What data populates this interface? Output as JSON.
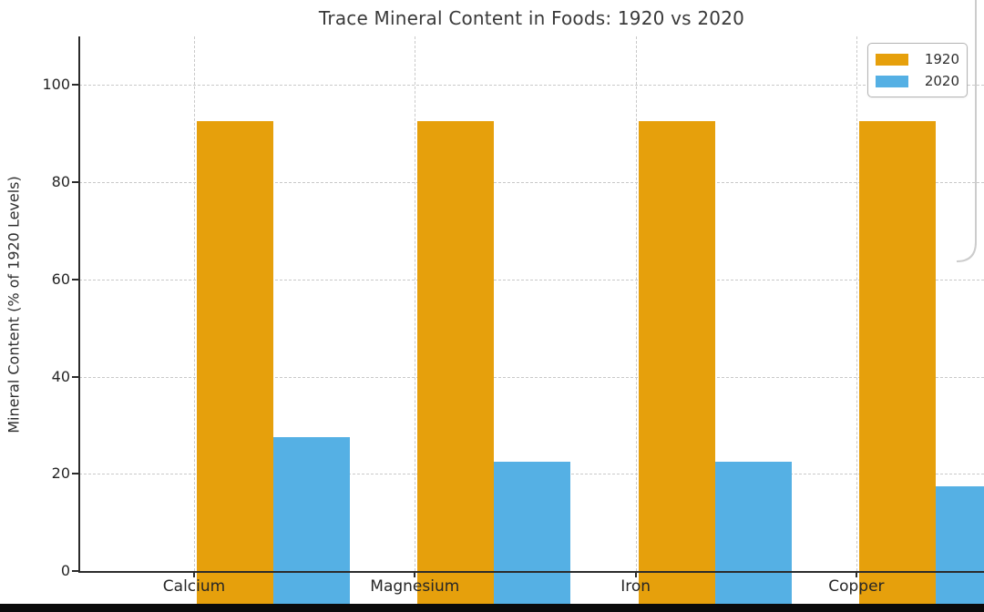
{
  "chart_data": {
    "type": "bar",
    "title": "Trace Mineral Content in Foods: 1920 vs 2020",
    "xlabel": "",
    "ylabel": "Mineral Content (% of 1920 Levels)",
    "categories": [
      "Calcium",
      "Magnesium",
      "Iron",
      "Copper"
    ],
    "series": [
      {
        "name": "1920",
        "color": "#E6A00C",
        "values": [
          100,
          100,
          100,
          100
        ]
      },
      {
        "name": "2020",
        "color": "#55B0E4",
        "values": [
          35,
          30,
          30,
          25
        ]
      }
    ],
    "ylim": [
      0,
      110
    ],
    "yticks": [
      0,
      20,
      40,
      60,
      80,
      100
    ],
    "grid": {
      "horizontal": true,
      "vertical": true,
      "style": "dashed",
      "color": "#c9c9c9"
    },
    "legend": {
      "position": "top-right",
      "labels": [
        "1920",
        "2020"
      ]
    }
  },
  "window": {
    "bottom_bar_color": "#0a0a0a"
  }
}
